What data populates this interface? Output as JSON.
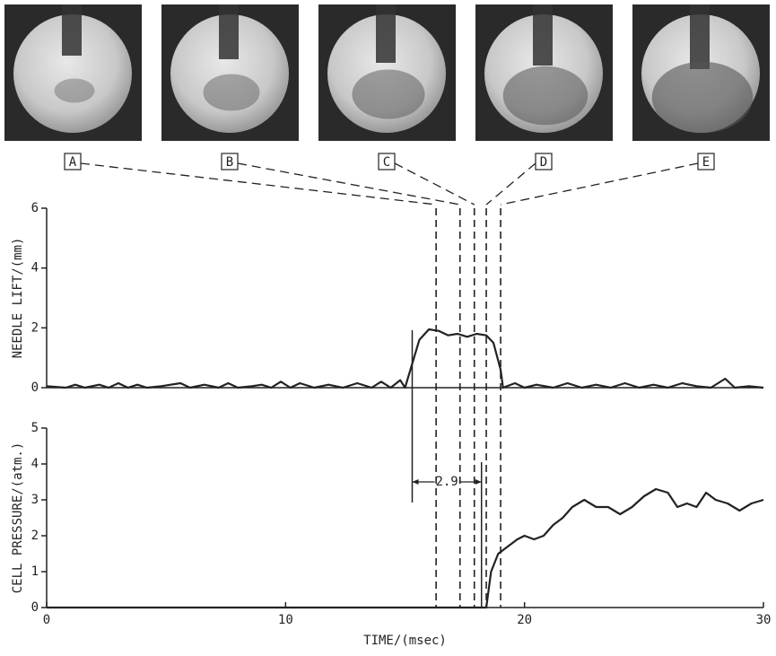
{
  "panels": [
    "A",
    "B",
    "C",
    "D",
    "E"
  ],
  "markers": [
    16.3,
    17.3,
    17.9,
    18.4,
    19.0
  ],
  "chart_data": [
    {
      "type": "line",
      "ylabel": "NEEDLE LIFT/(mm)",
      "x": [
        0,
        0.8,
        1.2,
        1.6,
        2.2,
        2.6,
        3.0,
        3.4,
        3.8,
        4.2,
        4.8,
        5.6,
        6.0,
        6.6,
        7.2,
        7.6,
        8.0,
        8.6,
        9.0,
        9.4,
        9.8,
        10.2,
        10.6,
        11.2,
        11.8,
        12.4,
        13.0,
        13.6,
        14.0,
        14.4,
        14.8,
        15.0,
        15.3,
        15.6,
        16.0,
        16.4,
        16.8,
        17.2,
        17.6,
        18.0,
        18.4,
        18.7,
        19.0,
        19.1,
        19.6,
        20.0,
        20.5,
        21.2,
        21.8,
        22.4,
        23.0,
        23.6,
        24.2,
        24.8,
        25.4,
        26.0,
        26.6,
        27.2,
        27.8,
        28.4,
        28.8,
        29.4,
        30
      ],
      "values": [
        0.05,
        0.0,
        0.1,
        0.0,
        0.1,
        0.0,
        0.15,
        0.0,
        0.1,
        0.0,
        0.05,
        0.15,
        0.0,
        0.1,
        0.0,
        0.15,
        0.0,
        0.05,
        0.1,
        0.0,
        0.2,
        0.0,
        0.15,
        0.0,
        0.1,
        0.0,
        0.15,
        0.0,
        0.2,
        0.0,
        0.25,
        0.0,
        0.8,
        1.6,
        1.95,
        1.9,
        1.75,
        1.8,
        1.7,
        1.8,
        1.75,
        1.5,
        0.6,
        0.0,
        0.15,
        0.0,
        0.1,
        0.0,
        0.15,
        0.0,
        0.1,
        0.0,
        0.15,
        0.0,
        0.1,
        0.0,
        0.15,
        0.05,
        0.0,
        0.3,
        0.0,
        0.05,
        0.0
      ],
      "color": "#222",
      "xlim": [
        0,
        30
      ],
      "ylim": [
        0,
        6
      ],
      "yticks": [
        0,
        2,
        4,
        6
      ]
    },
    {
      "type": "line",
      "ylabel": "CELL PRESSURE/(atm.)",
      "xlabel": "TIME/(msec)",
      "x": [
        0,
        18.4,
        18.6,
        18.9,
        19.3,
        19.7,
        20.0,
        20.4,
        20.8,
        21.2,
        21.6,
        22.0,
        22.5,
        23.0,
        23.5,
        24.0,
        24.5,
        25.0,
        25.5,
        26.0,
        26.4,
        26.8,
        27.2,
        27.6,
        28.0,
        28.5,
        29.0,
        29.5,
        30
      ],
      "values": [
        0,
        0,
        1.0,
        1.5,
        1.7,
        1.9,
        2.0,
        1.9,
        2.0,
        2.3,
        2.5,
        2.8,
        3.0,
        2.8,
        2.8,
        2.6,
        2.8,
        3.1,
        3.3,
        3.2,
        2.8,
        2.9,
        2.8,
        3.2,
        3.0,
        2.9,
        2.7,
        2.9,
        3.0
      ],
      "color": "#222",
      "xlim": [
        0,
        30
      ],
      "xticks": [
        0,
        10,
        20,
        30
      ],
      "ylim": [
        0,
        5
      ],
      "yticks": [
        0,
        1,
        2,
        3,
        4,
        5
      ],
      "interval": {
        "label": "2.9",
        "value": 2.9,
        "start": 15.3
      }
    }
  ]
}
